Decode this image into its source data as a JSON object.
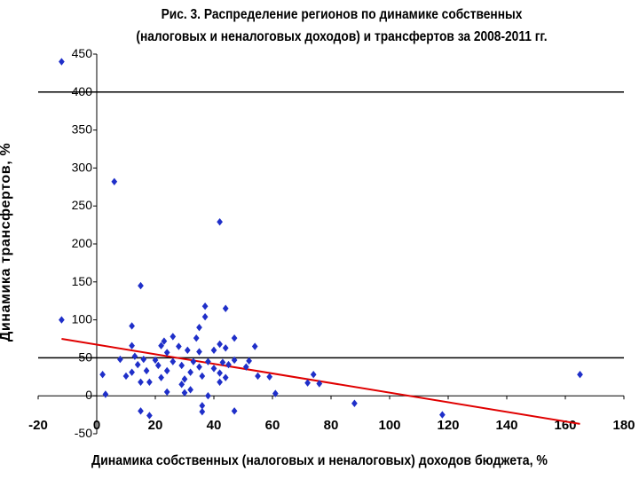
{
  "chart_data": {
    "type": "scatter",
    "title_line1": "Рис. 3. Распределение регионов по динамике собственных",
    "title_line2": "(налоговых и неналоговых доходов) и трансфертов за 2008-2011 гг.",
    "xlabel": "Динамика собственных (налоговых и неналоговых) доходов бюджета, %",
    "ylabel": "Динамика трансфертов, %",
    "xlim": [
      -20,
      180
    ],
    "ylim": [
      -50,
      450
    ],
    "xticks": [
      "-20",
      "0",
      "20",
      "40",
      "60",
      "80",
      "100",
      "120",
      "140",
      "160",
      "180"
    ],
    "yticks": [
      "-50",
      "0",
      "50",
      "100",
      "150",
      "200",
      "250",
      "300",
      "350",
      "400",
      "450"
    ],
    "gridlines_y": [
      50,
      400
    ],
    "colors": {
      "points": "#1f2fc9",
      "trend": "#e00000",
      "grid": "#000000"
    },
    "points": [
      {
        "x": -12,
        "y": 440
      },
      {
        "x": 6,
        "y": 282
      },
      {
        "x": 42,
        "y": 229
      },
      {
        "x": 15,
        "y": 145
      },
      {
        "x": -12,
        "y": 100
      },
      {
        "x": 37,
        "y": 118
      },
      {
        "x": 44,
        "y": 115
      },
      {
        "x": 37,
        "y": 104
      },
      {
        "x": 12,
        "y": 92
      },
      {
        "x": 35,
        "y": 90
      },
      {
        "x": 26,
        "y": 78
      },
      {
        "x": 47,
        "y": 76
      },
      {
        "x": 34,
        "y": 76
      },
      {
        "x": 23,
        "y": 72
      },
      {
        "x": 12,
        "y": 66
      },
      {
        "x": 22,
        "y": 66
      },
      {
        "x": 42,
        "y": 68
      },
      {
        "x": 54,
        "y": 65
      },
      {
        "x": 28,
        "y": 65
      },
      {
        "x": 31,
        "y": 60
      },
      {
        "x": 40,
        "y": 60
      },
      {
        "x": 35,
        "y": 58
      },
      {
        "x": 24,
        "y": 57
      },
      {
        "x": 44,
        "y": 63
      },
      {
        "x": 13,
        "y": 52
      },
      {
        "x": 20,
        "y": 47
      },
      {
        "x": 8,
        "y": 48
      },
      {
        "x": 16,
        "y": 48
      },
      {
        "x": 26,
        "y": 45
      },
      {
        "x": 33,
        "y": 45
      },
      {
        "x": 38,
        "y": 45
      },
      {
        "x": 43,
        "y": 44
      },
      {
        "x": 47,
        "y": 47
      },
      {
        "x": 52,
        "y": 46
      },
      {
        "x": 14,
        "y": 41
      },
      {
        "x": 21,
        "y": 40
      },
      {
        "x": 29,
        "y": 40
      },
      {
        "x": 35,
        "y": 38
      },
      {
        "x": 40,
        "y": 36
      },
      {
        "x": 45,
        "y": 41
      },
      {
        "x": 51,
        "y": 38
      },
      {
        "x": 12,
        "y": 31
      },
      {
        "x": 17,
        "y": 33
      },
      {
        "x": 24,
        "y": 33
      },
      {
        "x": 32,
        "y": 31
      },
      {
        "x": 42,
        "y": 30
      },
      {
        "x": 55,
        "y": 26
      },
      {
        "x": 2,
        "y": 28
      },
      {
        "x": 10,
        "y": 26
      },
      {
        "x": 22,
        "y": 24
      },
      {
        "x": 30,
        "y": 22
      },
      {
        "x": 36,
        "y": 26
      },
      {
        "x": 44,
        "y": 24
      },
      {
        "x": 59,
        "y": 25
      },
      {
        "x": 74,
        "y": 28
      },
      {
        "x": 72,
        "y": 17
      },
      {
        "x": 76,
        "y": 16
      },
      {
        "x": 15,
        "y": 18
      },
      {
        "x": 18,
        "y": 18
      },
      {
        "x": 29,
        "y": 15
      },
      {
        "x": 42,
        "y": 18
      },
      {
        "x": 32,
        "y": 8
      },
      {
        "x": 24,
        "y": 5
      },
      {
        "x": 3,
        "y": 2
      },
      {
        "x": 30,
        "y": 4
      },
      {
        "x": 38,
        "y": 0
      },
      {
        "x": 61,
        "y": 3
      },
      {
        "x": 36,
        "y": -13
      },
      {
        "x": 15,
        "y": -20
      },
      {
        "x": 18,
        "y": -26
      },
      {
        "x": 36,
        "y": -21
      },
      {
        "x": 47,
        "y": -20
      },
      {
        "x": 88,
        "y": -10
      },
      {
        "x": 118,
        "y": -25
      },
      {
        "x": 165,
        "y": 28
      }
    ],
    "trendline": {
      "x": [
        -12,
        165
      ],
      "y": [
        75,
        -37
      ]
    }
  }
}
